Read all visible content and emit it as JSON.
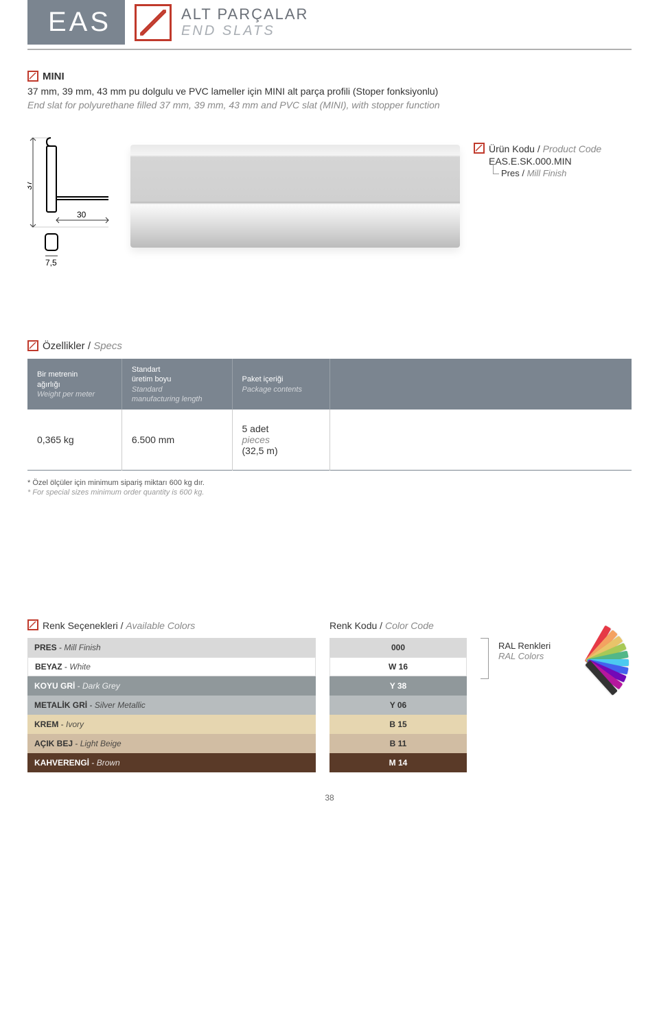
{
  "header": {
    "brand": "EAS",
    "title_tr": "ALT PARÇALAR",
    "title_en": "END SLATS"
  },
  "intro": {
    "name": "MINI",
    "desc_tr": "37 mm, 39 mm, 43 mm pu dolgulu ve PVC lameller için MINI alt parça profili (Stoper fonksiyonlu)",
    "desc_en": "End slat for polyurethane filled 37 mm, 39 mm, 43 mm and PVC slat (MINI), with stopper function"
  },
  "drawing": {
    "height_dim": "37",
    "width_dim": "30",
    "bottom_dim": "7,5"
  },
  "product_code": {
    "label_tr": "Ürün Kodu",
    "label_en": "Product Code",
    "value": "EAS.E.SK.000.MIN",
    "finish_tr": "Pres",
    "finish_en": "Mill Finish"
  },
  "specs": {
    "heading_tr": "Özellikler",
    "heading_en": "Specs",
    "columns": [
      {
        "tr": "Bir metrenin\nağırlığı",
        "en": "Weight per meter"
      },
      {
        "tr": "Standart\nüretim boyu",
        "en": "Standard\nmanufacturing length"
      },
      {
        "tr": "Paket içeriği",
        "en": "Package contents"
      }
    ],
    "row": {
      "weight": "0,365 kg",
      "length": "6.500 mm",
      "pack_main": "5 adet",
      "pack_sub": "pieces",
      "pack_m": "(32,5 m)"
    }
  },
  "footnote": {
    "tr": "* Özel ölçüler için minimum sipariş miktarı 600 kg dır.",
    "en": "* For special sizes minimum order quantity is 600 kg."
  },
  "colors": {
    "heading_tr": "Renk Seçenekleri",
    "heading_en": "Available Colors",
    "code_heading_tr": "Renk Kodu",
    "code_heading_en": "Color Code",
    "ral_tr": "RAL Renkleri",
    "ral_en": "RAL Colors",
    "rows": [
      {
        "name_tr": "PRES",
        "name_en": "Mill Finish",
        "code": "000",
        "bg": "#d9d9d9",
        "fg": "#333333"
      },
      {
        "name_tr": "BEYAZ",
        "name_en": "White",
        "code": "W 16",
        "bg": "#ffffff",
        "fg": "#333333"
      },
      {
        "name_tr": "KOYU GRİ",
        "name_en": "Dark Grey",
        "code": "Y 38",
        "bg": "#90989b",
        "fg": "#ffffff"
      },
      {
        "name_tr": "METALİK GRİ",
        "name_en": "Silver Metallic",
        "code": "Y 06",
        "bg": "#b7bcbe",
        "fg": "#333333"
      },
      {
        "name_tr": "KREM",
        "name_en": "Ivory",
        "code": "B 15",
        "bg": "#e6d6b0",
        "fg": "#333333"
      },
      {
        "name_tr": "AÇIK BEJ",
        "name_en": "Light Beige",
        "code": "B 11",
        "bg": "#d1bda3",
        "fg": "#333333"
      },
      {
        "name_tr": "KAHVERENGİ",
        "name_en": "Brown",
        "code": "M 14",
        "bg": "#5a3a28",
        "fg": "#ffffff"
      }
    ],
    "fan_colors": [
      "#e63946",
      "#f4a261",
      "#e9c46a",
      "#a7c957",
      "#52b788",
      "#4cc9f0",
      "#4361ee",
      "#7209b7",
      "#b5179e",
      "#333333"
    ]
  },
  "page_number": "38"
}
